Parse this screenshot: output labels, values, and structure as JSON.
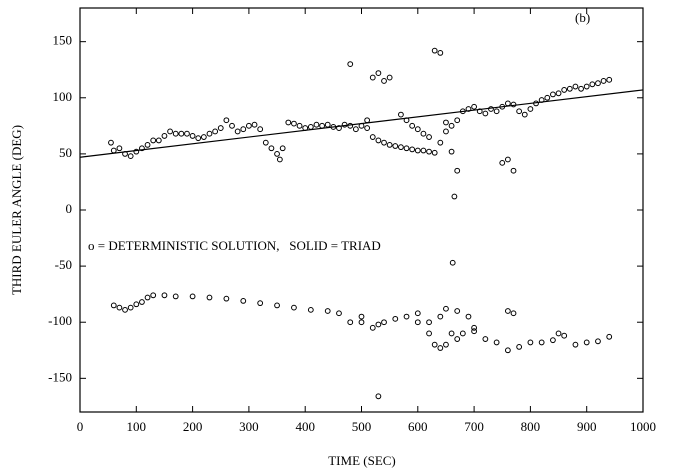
{
  "chart_data": {
    "type": "scatter",
    "xlabel": "TIME (SEC)",
    "ylabel": "THIRD EULER ANGLE (DEG)",
    "annotations": [
      "o = DETERMINISTIC SOLUTION,   SOLID = TRIAD",
      "(b)"
    ],
    "xlim": [
      0,
      1000
    ],
    "ylim": [
      -180,
      180
    ],
    "xticks": [
      0,
      100,
      200,
      300,
      400,
      500,
      600,
      700,
      800,
      900,
      1000
    ],
    "yticks": [
      -150,
      -100,
      -50,
      0,
      50,
      100,
      150
    ],
    "series": [
      {
        "type": "scatter",
        "color": "#000000",
        "x": [
          55,
          60,
          70,
          80,
          90,
          100,
          110,
          120,
          130,
          140,
          150,
          160,
          170,
          180,
          190,
          200,
          210,
          220,
          230,
          240,
          250,
          260,
          270,
          280,
          290,
          300,
          310,
          320,
          330,
          340,
          350,
          355,
          360,
          370,
          380,
          390,
          400,
          410,
          420,
          430,
          440,
          450,
          460,
          470,
          480,
          490,
          500,
          510,
          520,
          530,
          540,
          550,
          560,
          570,
          580,
          590,
          600,
          610,
          620,
          630,
          640,
          650,
          660,
          670,
          680,
          690,
          700,
          710,
          720,
          730,
          740,
          750,
          760,
          770,
          780,
          790,
          800,
          810,
          820,
          830,
          840,
          850,
          860,
          870,
          880,
          890,
          900,
          910,
          920,
          930,
          940,
          480,
          510,
          520,
          530,
          540,
          550,
          570,
          580,
          590,
          600,
          610,
          620,
          630,
          640,
          650,
          660,
          665,
          670,
          750,
          760,
          770,
          662,
          60,
          70,
          80,
          90,
          100,
          110,
          120,
          130,
          150,
          170,
          200,
          230,
          260,
          290,
          320,
          350,
          380,
          410,
          440,
          460,
          480,
          500,
          520,
          530,
          540,
          560,
          580,
          600,
          620,
          630,
          640,
          650,
          660,
          670,
          680,
          700,
          720,
          740,
          760,
          780,
          800,
          820,
          840,
          860,
          880,
          900,
          920,
          940,
          530,
          600,
          620,
          640,
          650,
          670,
          690,
          700,
          760,
          770,
          850,
          500
        ],
        "values": [
          60,
          53,
          55,
          50,
          48,
          52,
          55,
          58,
          62,
          62,
          66,
          70,
          68,
          68,
          68,
          66,
          64,
          65,
          68,
          70,
          73,
          80,
          75,
          70,
          72,
          75,
          76,
          72,
          60,
          55,
          50,
          45,
          55,
          78,
          77,
          75,
          73,
          74,
          76,
          75,
          76,
          74,
          73,
          76,
          75,
          72,
          75,
          73,
          65,
          62,
          60,
          58,
          57,
          56,
          55,
          54,
          53,
          53,
          52,
          51,
          60,
          70,
          75,
          80,
          88,
          90,
          92,
          88,
          86,
          90,
          88,
          92,
          95,
          94,
          88,
          85,
          90,
          95,
          98,
          100,
          103,
          104,
          107,
          108,
          110,
          108,
          110,
          112,
          113,
          115,
          116,
          130,
          80,
          118,
          122,
          115,
          118,
          85,
          80,
          75,
          72,
          68,
          65,
          142,
          140,
          78,
          52,
          12,
          35,
          42,
          45,
          35,
          -47,
          -85,
          -87,
          -89,
          -87,
          -84,
          -82,
          -78,
          -76,
          -76,
          -77,
          -77,
          -78,
          -79,
          -81,
          -83,
          -85,
          -87,
          -89,
          -90,
          -92,
          -100,
          -95,
          -105,
          -102,
          -100,
          -97,
          -95,
          -100,
          -110,
          -120,
          -123,
          -120,
          -110,
          -115,
          -110,
          -108,
          -115,
          -118,
          -125,
          -122,
          -118,
          -118,
          -116,
          -112,
          -120,
          -118,
          -117,
          -113,
          -166,
          -92,
          -100,
          -95,
          -88,
          -90,
          -95,
          -105,
          -90,
          -92,
          -110,
          -100
        ]
      },
      {
        "type": "line",
        "color": "#000000",
        "x": [
          0,
          1000
        ],
        "values": [
          47,
          107
        ]
      }
    ]
  }
}
